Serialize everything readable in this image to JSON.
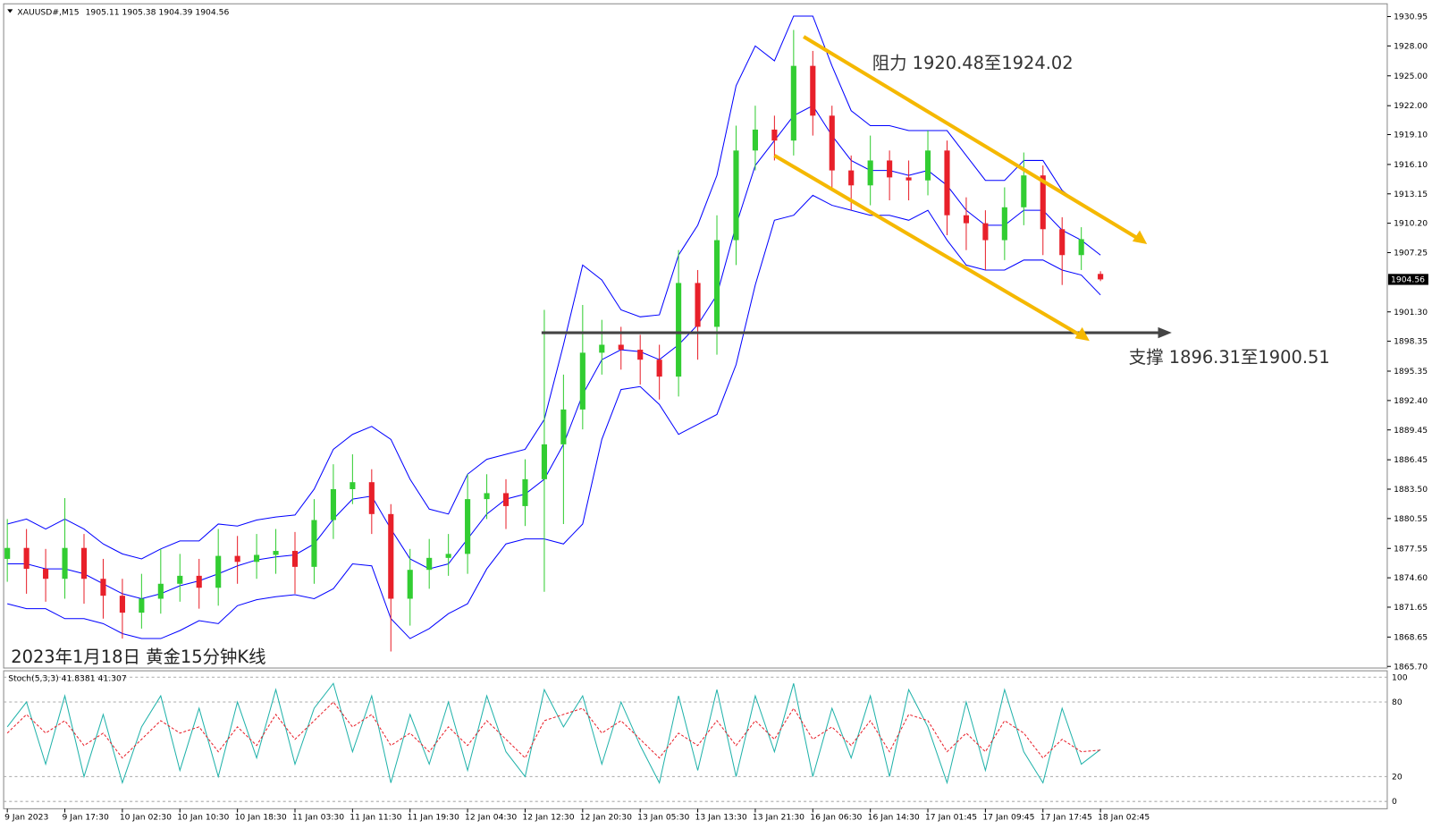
{
  "chart_data": {
    "type": "candlestick",
    "symbol": "XAUUSD#,M15",
    "title": "2023年1月18日 黄金15分钟K线",
    "open": [
      1876.5,
      1877.6,
      1875.5,
      1874.5,
      1877.6,
      1874.5,
      1872.8,
      1871.1,
      1872.5,
      1874.0,
      1874.8,
      1873.6,
      1876.8,
      1876.2,
      1876.9,
      1877.3,
      1875.7,
      1880.4,
      1883.5,
      1884.2,
      1881.0,
      1872.5,
      1875.4,
      1876.6,
      1877.0,
      1882.5,
      1883.1,
      1881.8,
      1884.5,
      1888.0,
      1891.5,
      1897.2,
      1898.0,
      1897.5,
      1896.5,
      1894.8,
      1904.2,
      1899.8,
      1908.5,
      1917.5,
      1919.6,
      1918.5,
      1926.0,
      1921.0,
      1915.5,
      1914.0,
      1916.5,
      1914.8,
      1914.5,
      1917.5,
      1911.0,
      1910.2,
      1908.5,
      1911.8,
      1915.0,
      1909.6,
      1907.0,
      1905.11
    ],
    "high": [
      1880.5,
      1879.5,
      1877.5,
      1882.6,
      1879,
      1876.5,
      1874.5,
      1875,
      1877.5,
      1877,
      1876.5,
      1879.5,
      1878.8,
      1879,
      1879.5,
      1879.2,
      1882.5,
      1886,
      1887,
      1885.5,
      1882,
      1877.5,
      1878.5,
      1879,
      1885,
      1885,
      1884.5,
      1886.5,
      1901.5,
      1895,
      1902,
      1900.5,
      1899.8,
      1899,
      1898,
      1907.5,
      1905.5,
      1911,
      1920,
      1922,
      1921,
      1929.6,
      1927.5,
      1922,
      1917,
      1919,
      1917.5,
      1916.5,
      1919.5,
      1918.5,
      1912.8,
      1911.5,
      1913.8,
      1917.3,
      1916,
      1910.8,
      1909.8,
      1905.38
    ],
    "low": [
      1874.2,
      1873,
      1872.2,
      1872.5,
      1872,
      1870.5,
      1868.5,
      1869.5,
      1871,
      1872.2,
      1871.5,
      1871.8,
      1874,
      1874.5,
      1875,
      1873,
      1874,
      1878.5,
      1882,
      1879,
      1867.2,
      1869.8,
      1873.5,
      1874.8,
      1875,
      1880.5,
      1879.5,
      1879.8,
      1873.2,
      1880,
      1889.5,
      1895,
      1895.5,
      1894,
      1892.5,
      1892.8,
      1896.5,
      1897,
      1906,
      1915.5,
      1916.5,
      1917,
      1919,
      1913.5,
      1911.5,
      1912,
      1912.5,
      1912.5,
      1913,
      1909,
      1907.5,
      1905.5,
      1906.5,
      1910,
      1907,
      1904,
      1905.5,
      1904.39
    ],
    "close": [
      1877.6,
      1875.5,
      1874.5,
      1877.6,
      1874.5,
      1872.8,
      1871.1,
      1872.5,
      1874.0,
      1874.8,
      1873.6,
      1876.8,
      1876.2,
      1876.9,
      1877.3,
      1875.7,
      1880.4,
      1883.5,
      1884.2,
      1881.0,
      1872.5,
      1875.4,
      1876.6,
      1877.0,
      1882.5,
      1883.1,
      1881.8,
      1884.5,
      1888.0,
      1891.5,
      1897.2,
      1898.0,
      1897.5,
      1896.5,
      1894.8,
      1904.2,
      1899.8,
      1908.5,
      1917.5,
      1919.6,
      1918.5,
      1926.0,
      1921.0,
      1915.5,
      1914.0,
      1916.5,
      1914.8,
      1914.5,
      1917.5,
      1911.0,
      1910.2,
      1908.5,
      1911.8,
      1915.0,
      1909.6,
      1907.0,
      1908.6,
      1904.56
    ],
    "up_color": "#32cd32",
    "down_color": "#e8202a",
    "series": [
      {
        "color": "#0000ff",
        "values": [
          1880,
          1880.5,
          1879.5,
          1880.5,
          1879.5,
          1878,
          1877,
          1876.5,
          1877.5,
          1878.3,
          1878.3,
          1880,
          1879.8,
          1880.4,
          1880.7,
          1880.9,
          1883.5,
          1887.5,
          1889,
          1889.8,
          1888.5,
          1884.5,
          1881.5,
          1881,
          1885,
          1886.5,
          1887,
          1887.5,
          1890.5,
          1898,
          1906,
          1904.5,
          1901.5,
          1900.8,
          1901,
          1907,
          1910,
          1915,
          1924,
          1928,
          1926.5,
          1931,
          1931,
          1926,
          1921.5,
          1920,
          1920,
          1919.5,
          1919.5,
          1919.5,
          1917,
          1914.5,
          1914.5,
          1916.5,
          1916.5,
          1913.5,
          1912,
          1911
        ]
      },
      {
        "color": "#0000ff",
        "values": [
          1876,
          1876,
          1875.5,
          1875.5,
          1875,
          1874,
          1873,
          1872.5,
          1873,
          1873.8,
          1874.3,
          1875,
          1875.8,
          1876.4,
          1876.7,
          1876.9,
          1878,
          1880.5,
          1882.5,
          1882.8,
          1879.5,
          1876.5,
          1875.5,
          1876,
          1878.5,
          1881,
          1882.5,
          1883,
          1884.5,
          1888,
          1893,
          1896.5,
          1897.5,
          1897.3,
          1896.5,
          1898,
          1900,
          1903,
          1910,
          1916,
          1918.5,
          1921,
          1922,
          1919,
          1916.5,
          1915.5,
          1915.5,
          1915,
          1915.5,
          1914,
          1911.5,
          1910,
          1910,
          1911.5,
          1911.5,
          1909.5,
          1908.5,
          1907
        ]
      },
      {
        "color": "#0000ff",
        "values": [
          1872,
          1871.5,
          1871.5,
          1870.5,
          1870.5,
          1870,
          1869,
          1868.5,
          1868.5,
          1869.3,
          1870.3,
          1870,
          1871.8,
          1872.4,
          1872.7,
          1872.9,
          1872.5,
          1873.5,
          1876,
          1875.8,
          1870.5,
          1868.5,
          1869.5,
          1871,
          1872,
          1875.5,
          1878,
          1878.5,
          1878.5,
          1878,
          1880,
          1888.5,
          1893.5,
          1893.8,
          1892,
          1889,
          1890,
          1891,
          1896,
          1904,
          1910.5,
          1911,
          1913,
          1912,
          1911.5,
          1911,
          1911,
          1910.5,
          1911.5,
          1908.5,
          1906,
          1905.5,
          1905.5,
          1906.5,
          1906.5,
          1905.5,
          1905,
          1903
        ]
      }
    ],
    "ylim": [
      1865.54,
      1932.23
    ],
    "yticks": [
      1930.95,
      {
        "value": 1928,
        "label": "1928.00"
      },
      {
        "value": 1925,
        "label": "1925.00"
      },
      {
        "value": 1922,
        "label": "1922.00"
      },
      {
        "value": 1919.1,
        "label": "1919.10"
      },
      {
        "value": 1916.1,
        "label": "1916.10"
      },
      1913.15,
      {
        "value": 1910.2,
        "label": "1910.20"
      },
      1907.25,
      {
        "value": 1901.3,
        "label": "1901.30"
      },
      1898.35,
      1895.35,
      {
        "value": 1892.4,
        "label": "1892.40"
      },
      1889.45,
      1886.45,
      {
        "value": 1883.5,
        "label": "1883.50"
      },
      1880.55,
      1877.55,
      {
        "value": 1874.6,
        "label": "1874.60"
      },
      1871.65,
      1868.65,
      {
        "value": 1865.7,
        "label": "1865.70"
      }
    ],
    "xtick_labels": [
      "9 Jan 2023",
      "9 Jan 17:30",
      "10 Jan 02:30",
      "10 Jan 10:30",
      "10 Jan 18:30",
      "11 Jan 03:30",
      "11 Jan 11:30",
      "11 Jan 19:30",
      "12 Jan 04:30",
      "12 Jan 12:30",
      "12 Jan 20:30",
      "13 Jan 05:30",
      "13 Jan 13:30",
      "13 Jan 21:30",
      "16 Jan 06:30",
      "16 Jan 14:30",
      "17 Jan 01:45",
      "17 Jan 09:45",
      "17 Jan 17:45",
      "18 Jan 02:45"
    ],
    "annotations": [
      "阻力 1920.48至1924.02",
      "支撑 1896.31至1900.51"
    ],
    "indicator": {
      "type": "line",
      "title": "Stoch(5,3,3)",
      "ylim": [
        0,
        100
      ],
      "yticks": [
        0,
        20,
        80,
        100
      ],
      "series": [
        {
          "color": "#20b2aa",
          "values": [
            60,
            80,
            30,
            85,
            20,
            70,
            15,
            60,
            85,
            25,
            75,
            20,
            80,
            35,
            90,
            30,
            75,
            95,
            40,
            85,
            15,
            70,
            30,
            80,
            25,
            85,
            40,
            20,
            90,
            60,
            85,
            30,
            80,
            45,
            15,
            85,
            25,
            90,
            20,
            85,
            40,
            95,
            20,
            75,
            35,
            85,
            20,
            90,
            60,
            15,
            80,
            25,
            90,
            40,
            15,
            75,
            30,
            41.8381
          ]
        },
        {
          "color": "#e8202a",
          "values": [
            55,
            70,
            55,
            65,
            45,
            55,
            35,
            50,
            65,
            55,
            60,
            40,
            60,
            45,
            70,
            50,
            65,
            80,
            60,
            70,
            45,
            55,
            40,
            60,
            45,
            65,
            50,
            35,
            65,
            70,
            75,
            55,
            65,
            50,
            35,
            55,
            45,
            65,
            45,
            65,
            50,
            75,
            50,
            60,
            45,
            65,
            40,
            70,
            65,
            40,
            55,
            40,
            65,
            55,
            35,
            50,
            40,
            41.307
          ]
        }
      ]
    }
  }
}
